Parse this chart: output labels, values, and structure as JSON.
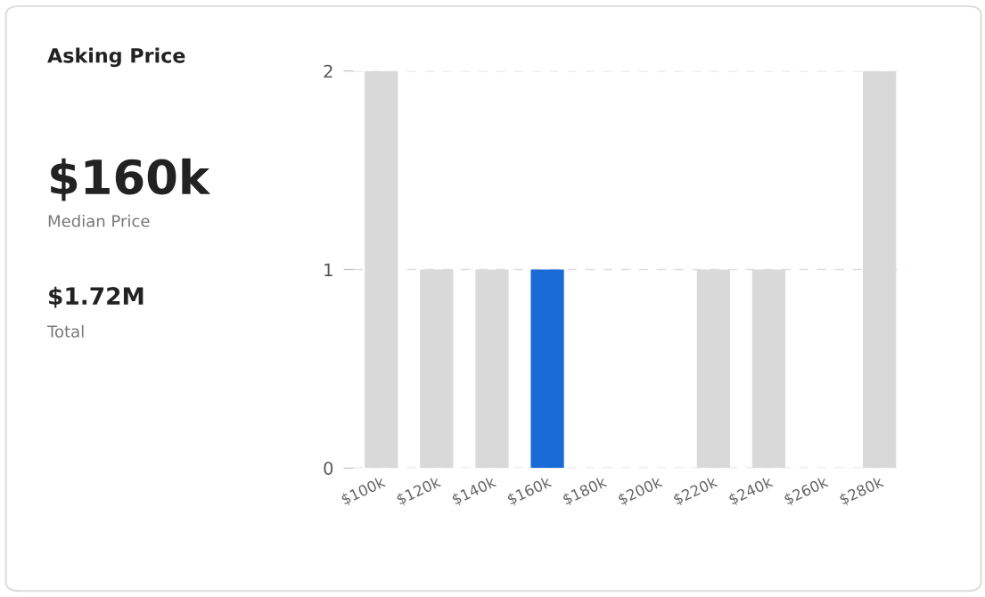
{
  "chart_data": {
    "type": "bar",
    "title": "Asking Price",
    "annotations": [
      "$160k",
      "Median Price",
      "$1.72M",
      "Total"
    ],
    "categories": [
      "$100k",
      "$120k",
      "$140k",
      "$160k",
      "$180k",
      "$200k",
      "$220k",
      "$240k",
      "$260k",
      "$280k"
    ],
    "values": [
      2,
      1,
      1,
      1,
      0,
      0,
      1,
      1,
      0,
      2
    ],
    "colors": [
      "#d9d9d9",
      "#d9d9d9",
      "#d9d9d9",
      "#1a6bd6",
      "#d9d9d9",
      "#d9d9d9",
      "#d9d9d9",
      "#d9d9d9",
      "#d9d9d9",
      "#d9d9d9"
    ],
    "ylim": [
      0,
      2
    ],
    "yticks": [
      0,
      1,
      2
    ],
    "grid": "y",
    "legend": false
  }
}
